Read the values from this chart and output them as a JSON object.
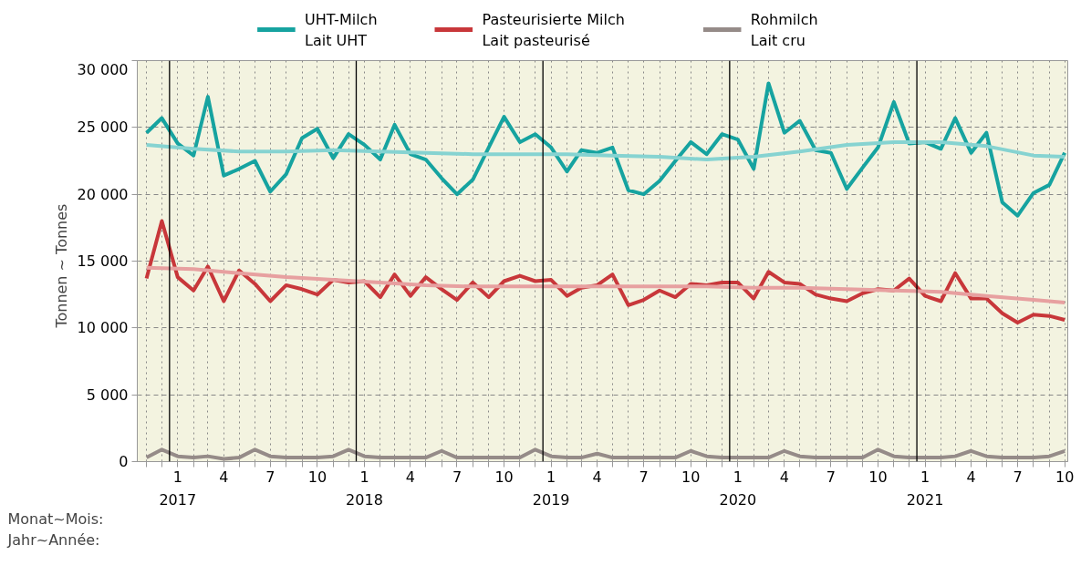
{
  "chart_data": {
    "type": "line",
    "ylabel": "Tonnen  ~  Tonnes",
    "x": [
      "2016-11",
      "2016-12",
      "2017-01",
      "2017-02",
      "2017-03",
      "2017-04",
      "2017-05",
      "2017-06",
      "2017-07",
      "2017-08",
      "2017-09",
      "2017-10",
      "2017-11",
      "2017-12",
      "2018-01",
      "2018-02",
      "2018-03",
      "2018-04",
      "2018-05",
      "2018-06",
      "2018-07",
      "2018-08",
      "2018-09",
      "2018-10",
      "2018-11",
      "2018-12",
      "2019-01",
      "2019-02",
      "2019-03",
      "2019-04",
      "2019-05",
      "2019-06",
      "2019-07",
      "2019-08",
      "2019-09",
      "2019-10",
      "2019-11",
      "2019-12",
      "2020-01",
      "2020-02",
      "2020-03",
      "2020-04",
      "2020-05",
      "2020-06",
      "2020-07",
      "2020-08",
      "2020-09",
      "2020-10",
      "2020-11",
      "2020-12",
      "2021-01",
      "2021-02",
      "2021-03",
      "2021-04",
      "2021-05",
      "2021-06",
      "2021-07",
      "2021-08",
      "2021-09",
      "2021-10"
    ],
    "series": [
      {
        "name": "UHT-Milch\nLait UHT",
        "color": "#16a3a0",
        "values": [
          24600,
          25700,
          23800,
          22900,
          27300,
          21400,
          21900,
          22500,
          20200,
          21500,
          24200,
          24900,
          22700,
          24500,
          23700,
          22600,
          25200,
          23000,
          22600,
          21200,
          20000,
          21100,
          23500,
          25800,
          23900,
          24500,
          23500,
          21700,
          23300,
          23100,
          23500,
          20300,
          20000,
          21000,
          22500,
          23900,
          23000,
          24500,
          24100,
          21900,
          28300,
          24600,
          25500,
          23300,
          23100,
          20400,
          22000,
          23500,
          26900,
          23800,
          23900,
          23400,
          25700,
          23100,
          24600,
          19400,
          18400,
          20100,
          20700,
          23100
        ]
      },
      {
        "color": "#86d3d1",
        "x": [
          "2016-11",
          "2017-02",
          "2017-05",
          "2017-08",
          "2017-11",
          "2018-02",
          "2018-05",
          "2018-08",
          "2018-11",
          "2019-02",
          "2019-05",
          "2019-08",
          "2019-11",
          "2020-02",
          "2020-05",
          "2020-08",
          "2020-11",
          "2021-02",
          "2021-05",
          "2021-08",
          "2021-10"
        ],
        "values": [
          23700,
          23400,
          23200,
          23200,
          23300,
          23200,
          23100,
          23000,
          23000,
          23000,
          22900,
          22800,
          22600,
          22800,
          23200,
          23700,
          23900,
          23900,
          23600,
          22900,
          22800
        ]
      },
      {
        "name": "Pasteurisierte Milch\nLait pasteurisé",
        "color": "#c8373a",
        "values": [
          13700,
          18000,
          13800,
          12800,
          14600,
          12000,
          14300,
          13300,
          12000,
          13200,
          12900,
          12500,
          13600,
          13400,
          13500,
          12300,
          14000,
          12400,
          13800,
          12900,
          12100,
          13400,
          12300,
          13500,
          13900,
          13500,
          13600,
          12400,
          13000,
          13200,
          14000,
          11700,
          12100,
          12800,
          12300,
          13300,
          13200,
          13400,
          13400,
          12200,
          14200,
          13400,
          13300,
          12500,
          12200,
          12000,
          12600,
          12900,
          12800,
          13700,
          12400,
          12000,
          14100,
          12200,
          12200,
          11100,
          10400,
          11000,
          10900,
          10600
        ]
      },
      {
        "color": "#e7a0a0",
        "x": [
          "2016-11",
          "2017-02",
          "2017-05",
          "2017-08",
          "2017-11",
          "2018-02",
          "2018-05",
          "2018-08",
          "2018-11",
          "2019-02",
          "2019-05",
          "2019-08",
          "2019-11",
          "2020-02",
          "2020-05",
          "2020-08",
          "2020-11",
          "2021-02",
          "2021-05",
          "2021-08",
          "2021-10"
        ],
        "values": [
          14500,
          14400,
          14100,
          13800,
          13600,
          13400,
          13200,
          13100,
          13100,
          13100,
          13100,
          13100,
          13100,
          13000,
          13000,
          12900,
          12800,
          12700,
          12400,
          12100,
          11900
        ]
      },
      {
        "name": "Rohmilch\nLait cru",
        "color": "#958b88",
        "values": [
          300,
          900,
          400,
          300,
          400,
          200,
          300,
          900,
          400,
          300,
          300,
          300,
          400,
          900,
          400,
          300,
          300,
          300,
          300,
          800,
          300,
          300,
          300,
          300,
          300,
          900,
          400,
          300,
          300,
          600,
          300,
          300,
          300,
          300,
          300,
          800,
          400,
          300,
          300,
          300,
          300,
          800,
          400,
          300,
          300,
          300,
          300,
          900,
          400,
          300,
          300,
          300,
          400,
          800,
          400,
          300,
          300,
          300,
          400,
          800
        ]
      }
    ],
    "xlim": [
      "2016-10-14",
      "2021-10-07"
    ],
    "xticks": [
      {
        "value": "2016-11",
        "label": null
      },
      {
        "value": "2016-12",
        "label": null
      },
      {
        "value": "2017-01",
        "label": "1"
      },
      {
        "value": "2017-02",
        "label": null
      },
      {
        "value": "2017-03",
        "label": null
      },
      {
        "value": "2017-04",
        "label": "4"
      },
      {
        "value": "2017-05",
        "label": null
      },
      {
        "value": "2017-06",
        "label": null
      },
      {
        "value": "2017-07",
        "label": "7"
      },
      {
        "value": "2017-08",
        "label": null
      },
      {
        "value": "2017-09",
        "label": null
      },
      {
        "value": "2017-10",
        "label": "10"
      },
      {
        "value": "2017-11",
        "label": null
      },
      {
        "value": "2017-12",
        "label": null
      },
      {
        "value": "2018-01",
        "label": "1"
      },
      {
        "value": "2018-02",
        "label": null
      },
      {
        "value": "2018-03",
        "label": null
      },
      {
        "value": "2018-04",
        "label": "4"
      },
      {
        "value": "2018-05",
        "label": null
      },
      {
        "value": "2018-06",
        "label": null
      },
      {
        "value": "2018-07",
        "label": "7"
      },
      {
        "value": "2018-08",
        "label": null
      },
      {
        "value": "2018-09",
        "label": null
      },
      {
        "value": "2018-10",
        "label": "10"
      },
      {
        "value": "2018-11",
        "label": null
      },
      {
        "value": "2018-12",
        "label": null
      },
      {
        "value": "2019-01",
        "label": "1"
      },
      {
        "value": "2019-02",
        "label": null
      },
      {
        "value": "2019-03",
        "label": null
      },
      {
        "value": "2019-04",
        "label": "4"
      },
      {
        "value": "2019-05",
        "label": null
      },
      {
        "value": "2019-06",
        "label": null
      },
      {
        "value": "2019-07",
        "label": "7"
      },
      {
        "value": "2019-08",
        "label": null
      },
      {
        "value": "2019-09",
        "label": null
      },
      {
        "value": "2019-10",
        "label": "10"
      },
      {
        "value": "2019-11",
        "label": null
      },
      {
        "value": "2019-12",
        "label": null
      },
      {
        "value": "2020-01",
        "label": "1"
      },
      {
        "value": "2020-02",
        "label": null
      },
      {
        "value": "2020-03",
        "label": null
      },
      {
        "value": "2020-04",
        "label": "4"
      },
      {
        "value": "2020-05",
        "label": null
      },
      {
        "value": "2020-06",
        "label": null
      },
      {
        "value": "2020-07",
        "label": "7"
      },
      {
        "value": "2020-08",
        "label": null
      },
      {
        "value": "2020-09",
        "label": null
      },
      {
        "value": "2020-10",
        "label": "10"
      },
      {
        "value": "2020-11",
        "label": null
      },
      {
        "value": "2020-12",
        "label": null
      },
      {
        "value": "2021-01",
        "label": "1"
      },
      {
        "value": "2021-02",
        "label": null
      },
      {
        "value": "2021-03",
        "label": null
      },
      {
        "value": "2021-04",
        "label": "4"
      },
      {
        "value": "2021-05",
        "label": null
      },
      {
        "value": "2021-06",
        "label": null
      },
      {
        "value": "2021-07",
        "label": "7"
      },
      {
        "value": "2021-08",
        "label": null
      },
      {
        "value": "2021-09",
        "label": null
      },
      {
        "value": "2021-10",
        "label": "10"
      }
    ],
    "ylim": [
      0,
      30000
    ],
    "yticks": [
      {
        "value": 0,
        "label": "0"
      },
      {
        "value": 5000,
        "label": "5 000"
      },
      {
        "value": 10000,
        "label": "10 000"
      },
      {
        "value": 15000,
        "label": "15 000"
      },
      {
        "value": 20000,
        "label": "20 000"
      },
      {
        "value": 25000,
        "label": "25 000"
      },
      {
        "value": 30000,
        "label": "30 000"
      }
    ],
    "ref_lines": [
      {
        "axis": "x",
        "value": "2016-12-16",
        "color": "#000000"
      },
      {
        "axis": "x",
        "value": "2017-12-16",
        "color": "#000000"
      },
      {
        "axis": "x",
        "value": "2018-12-16",
        "color": "#000000"
      },
      {
        "axis": "x",
        "value": "2019-12-16",
        "color": "#000000"
      },
      {
        "axis": "x",
        "value": "2020-12-16",
        "color": "#000000"
      }
    ],
    "xlabel": "Monat~Mois:",
    "x2label": "Jahr~Année:",
    "x2lim": [
      "2016-10-14",
      "2021-10-07"
    ],
    "x2ticks": [
      {
        "value": "2017-01",
        "label": "2017"
      },
      {
        "value": "2018-01",
        "label": "2018"
      },
      {
        "value": "2019-01",
        "label": "2019"
      },
      {
        "value": "2020-01",
        "label": "2020"
      },
      {
        "value": "2021-01",
        "label": "2021"
      }
    ],
    "grid": true,
    "legend": "top",
    "line_style": "solid",
    "marker": "none"
  }
}
